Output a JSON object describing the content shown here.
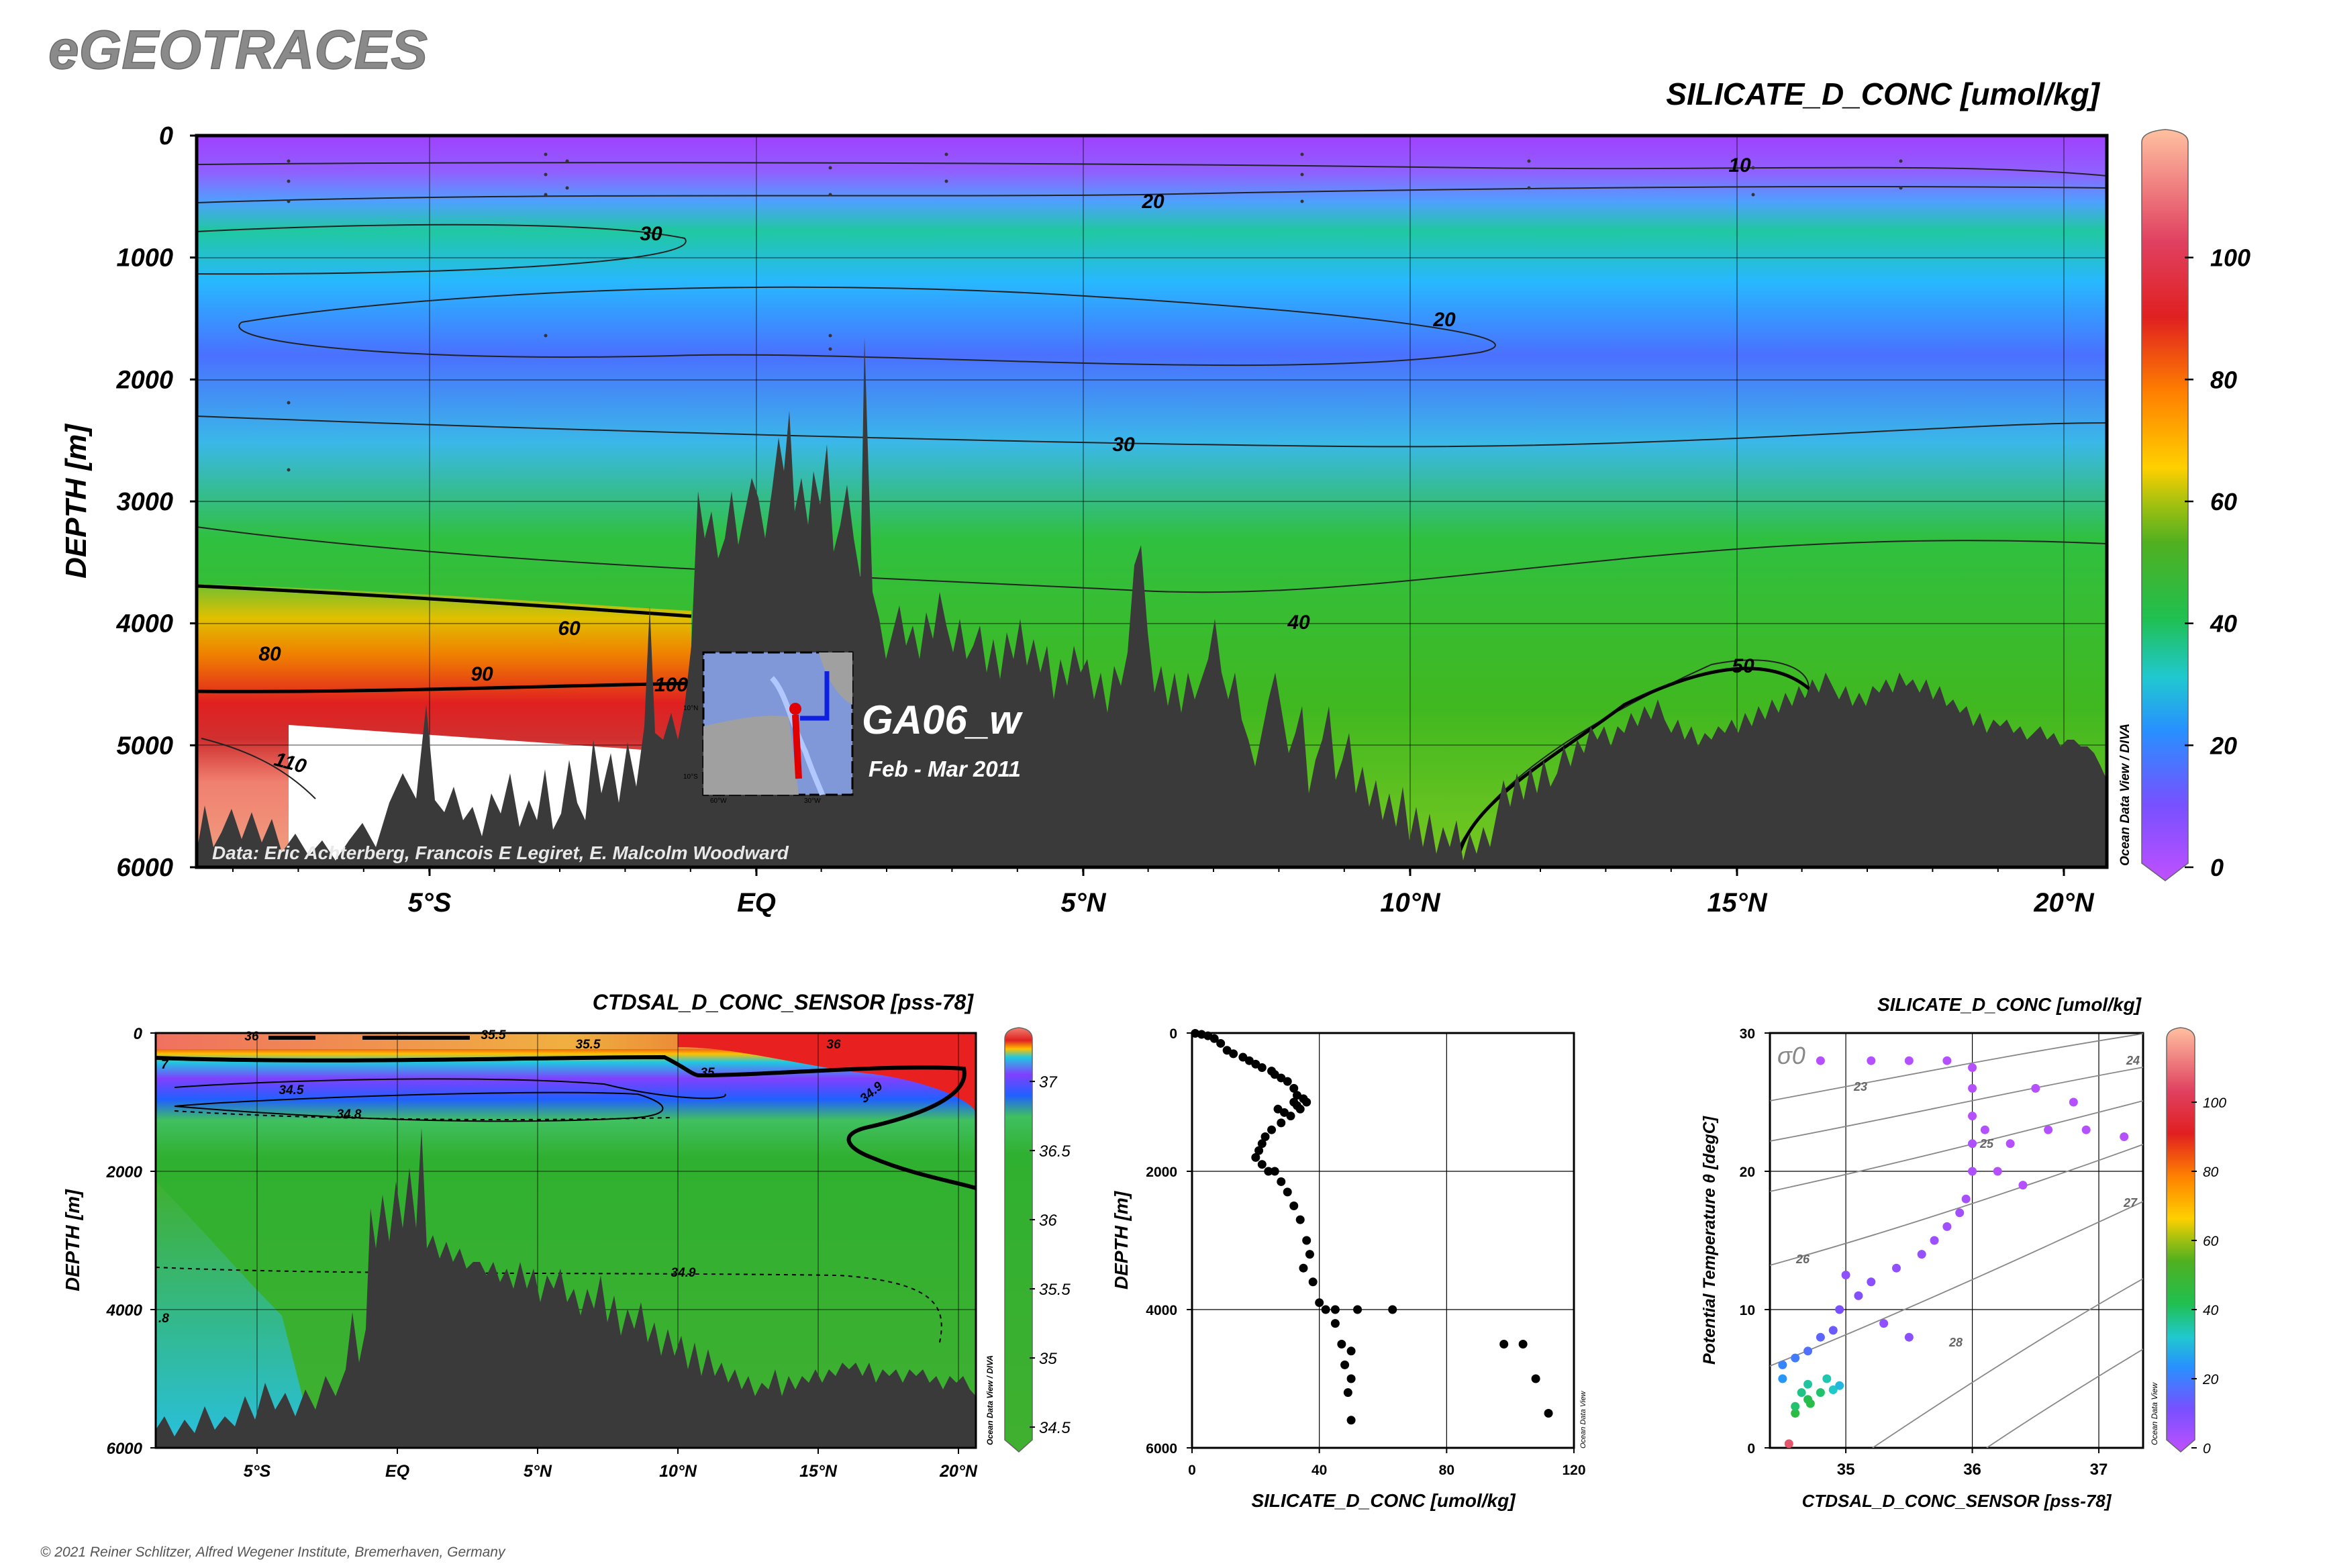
{
  "brand": "eGEOTRACES",
  "copyright": "© 2021 Reiner Schlitzer, Alfred Wegener Institute, Bremerhaven, Germany",
  "chart_data": [
    {
      "type": "heatmap",
      "title": "SILICATE_D_CONC [umol/kg]",
      "ylabel": "DEPTH [m]",
      "ylim": [
        6000,
        0
      ],
      "yticks": [
        "0",
        "1000",
        "2000",
        "3000",
        "4000",
        "5000",
        "6000"
      ],
      "xticks": [
        "5°S",
        "EQ",
        "5°N",
        "10°N",
        "15°N",
        "20°N"
      ],
      "colorbar": {
        "ticks": [
          "0",
          "20",
          "40",
          "60",
          "80",
          "100"
        ],
        "range": [
          0,
          120
        ],
        "label": "Ocean Data View / DIVA"
      },
      "contour_labels": [
        "10",
        "20",
        "20",
        "30",
        "30",
        "40",
        "50",
        "60",
        "80",
        "90",
        "100",
        "110"
      ],
      "section": "GA06_w",
      "cruise_dates": "Feb - Mar 2011",
      "credit": "Data: Eric Achterberg, Francois E Legiret, E. Malcolm Woodward",
      "inset_map_labels": [
        "60°W",
        "30°W",
        "10°S",
        "10°N"
      ]
    },
    {
      "type": "heatmap",
      "title": "CTDSAL_D_CONC_SENSOR [pss-78]",
      "ylabel": "DEPTH [m]",
      "ylim": [
        6000,
        0
      ],
      "yticks": [
        "0",
        "2000",
        "4000",
        "6000"
      ],
      "xticks": [
        "5°S",
        "EQ",
        "5°N",
        "10°N",
        "15°N",
        "20°N"
      ],
      "colorbar": {
        "ticks": [
          "34.5",
          "35",
          "35.5",
          "36",
          "36.5",
          "37"
        ],
        "range": [
          34.35,
          37.35
        ],
        "label": "Ocean Data View / DIVA"
      },
      "contour_labels": [
        "36",
        "35.5",
        "35.5",
        "36",
        "35",
        "34.5",
        "34.8",
        "34.9",
        "34.9",
        "7",
        ".8"
      ]
    },
    {
      "type": "scatter",
      "xlabel": "SILICATE_D_CONC [umol/kg]",
      "ylabel": "DEPTH [m]",
      "xlim": [
        0,
        120
      ],
      "ylim": [
        6000,
        0
      ],
      "xticks": [
        "0",
        "40",
        "80",
        "120"
      ],
      "yticks": [
        "0",
        "2000",
        "4000",
        "6000"
      ],
      "grid": true,
      "watermark": "Ocean Data View",
      "points": [
        [
          1,
          5
        ],
        [
          3,
          20
        ],
        [
          5,
          40
        ],
        [
          7,
          80
        ],
        [
          9,
          150
        ],
        [
          11,
          250
        ],
        [
          13,
          300
        ],
        [
          16,
          350
        ],
        [
          18,
          400
        ],
        [
          20,
          450
        ],
        [
          22,
          500
        ],
        [
          25,
          550
        ],
        [
          26,
          600
        ],
        [
          28,
          650
        ],
        [
          30,
          700
        ],
        [
          32,
          800
        ],
        [
          33,
          900
        ],
        [
          35,
          950
        ],
        [
          36,
          1000
        ],
        [
          33,
          1050
        ],
        [
          27,
          1100
        ],
        [
          29,
          1150
        ],
        [
          31,
          1200
        ],
        [
          34,
          1100
        ],
        [
          32,
          1000
        ],
        [
          28,
          1300
        ],
        [
          25,
          1400
        ],
        [
          23,
          1500
        ],
        [
          22,
          1600
        ],
        [
          21,
          1700
        ],
        [
          20,
          1800
        ],
        [
          22,
          1900
        ],
        [
          24,
          2000
        ],
        [
          26,
          2000
        ],
        [
          28,
          2150
        ],
        [
          30,
          2300
        ],
        [
          32,
          2500
        ],
        [
          34,
          2700
        ],
        [
          36,
          3000
        ],
        [
          37,
          3200
        ],
        [
          35,
          3400
        ],
        [
          38,
          3600
        ],
        [
          40,
          3900
        ],
        [
          42,
          4000
        ],
        [
          45,
          4000
        ],
        [
          52,
          4000
        ],
        [
          63,
          4000
        ],
        [
          45,
          4200
        ],
        [
          47,
          4500
        ],
        [
          50,
          4600
        ],
        [
          48,
          4800
        ],
        [
          50,
          5000
        ],
        [
          49,
          5200
        ],
        [
          50,
          5600
        ],
        [
          98,
          4500
        ],
        [
          104,
          4500
        ],
        [
          108,
          5000
        ],
        [
          112,
          5500
        ]
      ]
    },
    {
      "type": "scatter",
      "title": "SILICATE_D_CONC [umol/kg]",
      "xlabel": "CTDSAL_D_CONC_SENSOR [pss-78]",
      "ylabel": "Potential Temperature θ [degC]",
      "xlim": [
        34.4,
        37.35
      ],
      "ylim": [
        0,
        30
      ],
      "xticks": [
        "35",
        "36",
        "37"
      ],
      "yticks": [
        "0",
        "10",
        "20",
        "30"
      ],
      "grid": true,
      "isopycnal_label": "σ0",
      "isopycnals": [
        "23",
        "24",
        "25",
        "26",
        "27",
        "28"
      ],
      "colorbar": {
        "ticks": [
          "0",
          "20",
          "40",
          "60",
          "80",
          "100"
        ],
        "range": [
          0,
          120
        ],
        "label": "Ocean Data View"
      },
      "points": [
        [
          34.6,
          2.5,
          45
        ],
        [
          34.7,
          3.5,
          42
        ],
        [
          34.8,
          4,
          40
        ],
        [
          34.85,
          5,
          35
        ],
        [
          34.9,
          4.2,
          33
        ],
        [
          34.95,
          4.5,
          30
        ],
        [
          34.5,
          5,
          25
        ],
        [
          34.5,
          6,
          22
        ],
        [
          34.6,
          6.5,
          20
        ],
        [
          34.7,
          7,
          18
        ],
        [
          34.8,
          8,
          16
        ],
        [
          34.9,
          8.5,
          14
        ],
        [
          34.95,
          10,
          12
        ],
        [
          35.1,
          11,
          10
        ],
        [
          35.2,
          12,
          9
        ],
        [
          35.4,
          13,
          8
        ],
        [
          35.6,
          14,
          7
        ],
        [
          35.7,
          15,
          6
        ],
        [
          35.8,
          16,
          5
        ],
        [
          35.9,
          17,
          5
        ],
        [
          35.95,
          18,
          4
        ],
        [
          36,
          20,
          3
        ],
        [
          36,
          22,
          3
        ],
        [
          36,
          24,
          2
        ],
        [
          36,
          26,
          2
        ],
        [
          36,
          27.5,
          2
        ],
        [
          36.1,
          23,
          2
        ],
        [
          36.3,
          22,
          2
        ],
        [
          36.6,
          23,
          2
        ],
        [
          36.9,
          23,
          2
        ],
        [
          37.2,
          22.5,
          2
        ],
        [
          36.5,
          26,
          2
        ],
        [
          36.8,
          25,
          2
        ],
        [
          35.5,
          28,
          2
        ],
        [
          35.8,
          28,
          2
        ],
        [
          34.8,
          28,
          2
        ],
        [
          35.2,
          28,
          2
        ],
        [
          36.2,
          20,
          2
        ],
        [
          36.4,
          19,
          2
        ],
        [
          35,
          12.5,
          8
        ],
        [
          35.3,
          9,
          8
        ],
        [
          35.5,
          8,
          9
        ],
        [
          34.7,
          4.6,
          36
        ],
        [
          34.65,
          4,
          38
        ],
        [
          34.6,
          3,
          40
        ],
        [
          34.72,
          3.2,
          44
        ],
        [
          34.55,
          0.3,
          105
        ]
      ]
    }
  ]
}
